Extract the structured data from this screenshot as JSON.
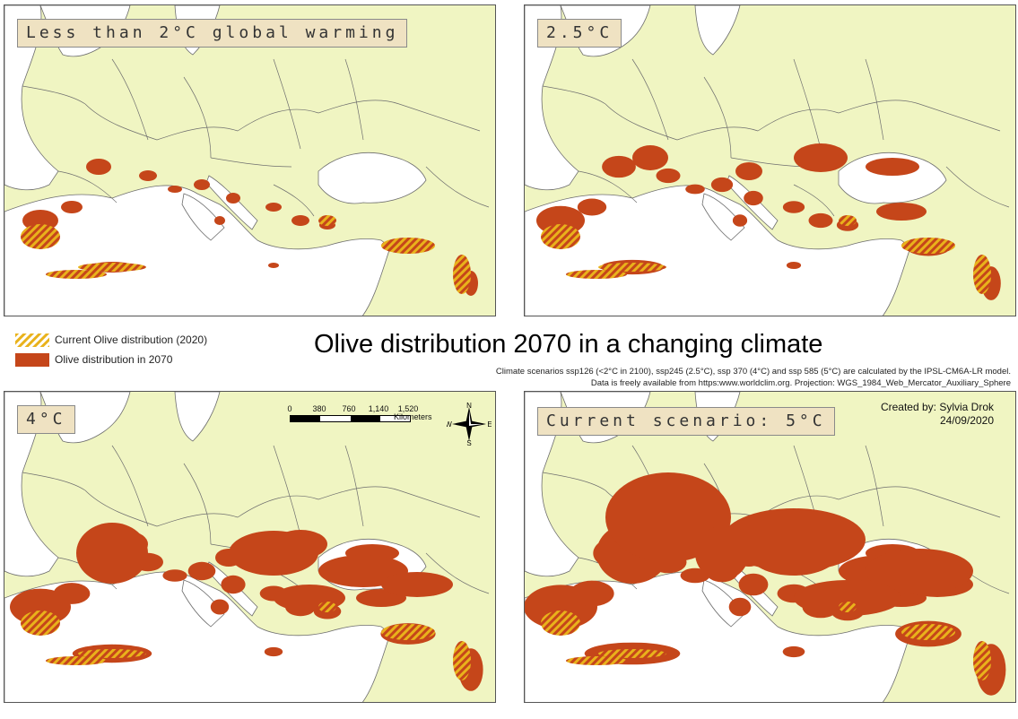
{
  "title": "Olive distribution 2070 in a changing climate",
  "notes": [
    "Climate scenarios ssp126 (<2°C in 2100), ssp245 (2.5°C), ssp 370 (4°C) and ssp 585 (5°C) are calculated by the IPSL-CM6A-LR model.",
    "Data is freely available from https:www.worldclim.org. Projection: WGS_1984_Web_Mercator_Auxiliary_Sphere"
  ],
  "legend": {
    "current": "Current Olive distribution (2020)",
    "future": "Olive distribution in 2070"
  },
  "panels": [
    {
      "label": "Less than 2°C global warming",
      "intensity": 1
    },
    {
      "label": "2.5°C",
      "intensity": 2
    },
    {
      "label": "4°C",
      "intensity": 3
    },
    {
      "label": "Current scenario: 5°C",
      "intensity": 4
    }
  ],
  "scalebar": {
    "ticks": [
      "0",
      "380",
      "760",
      "1,140",
      "1,520"
    ],
    "unit": "Kilometers"
  },
  "north_arrow": {
    "n": "N",
    "s": "S",
    "e": "E",
    "w": "W"
  },
  "credit": {
    "author": "Created by: Sylvia Drok",
    "date": "24/09/2020"
  },
  "colors": {
    "land": "#f0f5c2",
    "sea": "#ffffff",
    "future_olive": "#c5461a",
    "current_olive_stripe": "#e9b21b",
    "borders": "#6e6e6e",
    "label_box": "#efe2c2"
  }
}
